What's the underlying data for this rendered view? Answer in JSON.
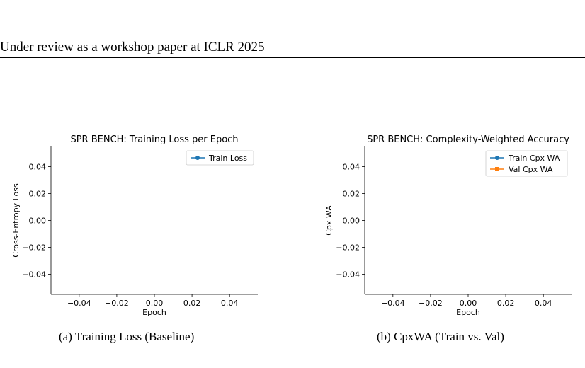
{
  "header": {
    "text": "Under review as a workshop paper at ICLR 2025"
  },
  "figures": [
    {
      "caption": "(a) Training Loss (Baseline)",
      "chart_data": {
        "type": "line",
        "title": "SPR BENCH: Training Loss per Epoch",
        "xlabel": "Epoch",
        "ylabel": "Cross-Entropy Loss",
        "xlim": [
          -0.055,
          0.055
        ],
        "ylim": [
          -0.055,
          0.055
        ],
        "xticks": [
          -0.04,
          -0.02,
          0.0,
          0.02,
          0.04
        ],
        "xtick_labels": [
          "−0.04",
          "−0.02",
          "0.00",
          "0.02",
          "0.04"
        ],
        "yticks": [
          0.04,
          0.02,
          0.0,
          -0.02,
          -0.04
        ],
        "ytick_labels": [
          "0.04",
          "0.02",
          "0.00",
          "−0.02",
          "−0.04"
        ],
        "grid": false,
        "legend_position": "top-right",
        "series": [
          {
            "name": "Train Loss",
            "color": "#1f77b4",
            "marker": "circle",
            "x": [],
            "y": []
          }
        ]
      }
    },
    {
      "caption": "(b) CpxWA (Train vs. Val)",
      "chart_data": {
        "type": "line",
        "title": "SPR BENCH: Complexity-Weighted Accuracy",
        "xlabel": "Epoch",
        "ylabel": "Cpx WA",
        "xlim": [
          -0.055,
          0.055
        ],
        "ylim": [
          -0.055,
          0.055
        ],
        "xticks": [
          -0.04,
          -0.02,
          0.0,
          0.02,
          0.04
        ],
        "xtick_labels": [
          "−0.04",
          "−0.02",
          "0.00",
          "0.02",
          "0.04"
        ],
        "yticks": [
          0.04,
          0.02,
          0.0,
          -0.02,
          -0.04
        ],
        "ytick_labels": [
          "0.04",
          "0.02",
          "0.00",
          "−0.02",
          "−0.04"
        ],
        "grid": false,
        "legend_position": "top-right",
        "series": [
          {
            "name": "Train Cpx WA",
            "color": "#1f77b4",
            "marker": "circle",
            "x": [],
            "y": []
          },
          {
            "name": "Val Cpx WA",
            "color": "#ff7f0e",
            "marker": "square",
            "x": [],
            "y": []
          }
        ]
      }
    }
  ]
}
